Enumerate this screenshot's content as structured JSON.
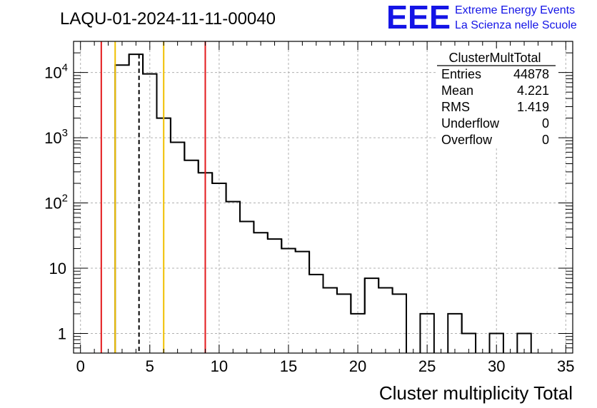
{
  "title": "LAQU-01-2024-11-11-00040",
  "logo": {
    "mark": "EEE",
    "line1": "Extreme Energy Events",
    "line2": "La Scienza nelle Scuole",
    "color": "#1414e6"
  },
  "stats": {
    "name": "ClusterMultTotal",
    "rows": [
      {
        "label": "Entries",
        "value": "44878"
      },
      {
        "label": "Mean",
        "value": "4.221"
      },
      {
        "label": "RMS",
        "value": "1.419"
      },
      {
        "label": "Underflow",
        "value": "0"
      },
      {
        "label": "Overflow",
        "value": "0"
      }
    ]
  },
  "chart_data": {
    "type": "bar",
    "style": "step histogram",
    "title": "LAQU-01-2024-11-11-00040",
    "xlabel": "Cluster multiplicity Total",
    "ylabel": "",
    "xlim": [
      -0.5,
      35.5
    ],
    "ylim": [
      0.5,
      30000
    ],
    "yscale": "log",
    "grid": true,
    "bin_width": 1,
    "x_ticks": [
      0,
      5,
      10,
      15,
      20,
      25,
      30,
      35
    ],
    "y_ticks": [
      {
        "value": 1,
        "label": "1"
      },
      {
        "value": 10,
        "label": "10"
      },
      {
        "value": 100,
        "label": "10^2"
      },
      {
        "value": 1000,
        "label": "10^3"
      },
      {
        "value": 10000,
        "label": "10^4"
      }
    ],
    "bins": [
      {
        "x": 3,
        "y": 13000
      },
      {
        "x": 4,
        "y": 19000
      },
      {
        "x": 5,
        "y": 9500
      },
      {
        "x": 6,
        "y": 2000
      },
      {
        "x": 7,
        "y": 850
      },
      {
        "x": 8,
        "y": 450
      },
      {
        "x": 9,
        "y": 290
      },
      {
        "x": 10,
        "y": 200
      },
      {
        "x": 11,
        "y": 105
      },
      {
        "x": 12,
        "y": 52
      },
      {
        "x": 13,
        "y": 35
      },
      {
        "x": 14,
        "y": 28
      },
      {
        "x": 15,
        "y": 20
      },
      {
        "x": 16,
        "y": 18
      },
      {
        "x": 17,
        "y": 8
      },
      {
        "x": 18,
        "y": 5
      },
      {
        "x": 19,
        "y": 4
      },
      {
        "x": 20,
        "y": 2
      },
      {
        "x": 21,
        "y": 7
      },
      {
        "x": 22,
        "y": 5
      },
      {
        "x": 23,
        "y": 4
      },
      {
        "x": 25,
        "y": 2
      },
      {
        "x": 27,
        "y": 2
      },
      {
        "x": 28,
        "y": 1
      },
      {
        "x": 30,
        "y": 1
      },
      {
        "x": 32,
        "y": 1
      }
    ],
    "vertical_lines": [
      {
        "x": 1.5,
        "color": "#e31a1c",
        "style": "solid"
      },
      {
        "x": 2.5,
        "color": "#f0c000",
        "style": "solid"
      },
      {
        "x": 4.221,
        "color": "#000000",
        "style": "dashed"
      },
      {
        "x": 6.0,
        "color": "#f0c000",
        "style": "solid"
      },
      {
        "x": 9.0,
        "color": "#e31a1c",
        "style": "solid"
      }
    ]
  }
}
